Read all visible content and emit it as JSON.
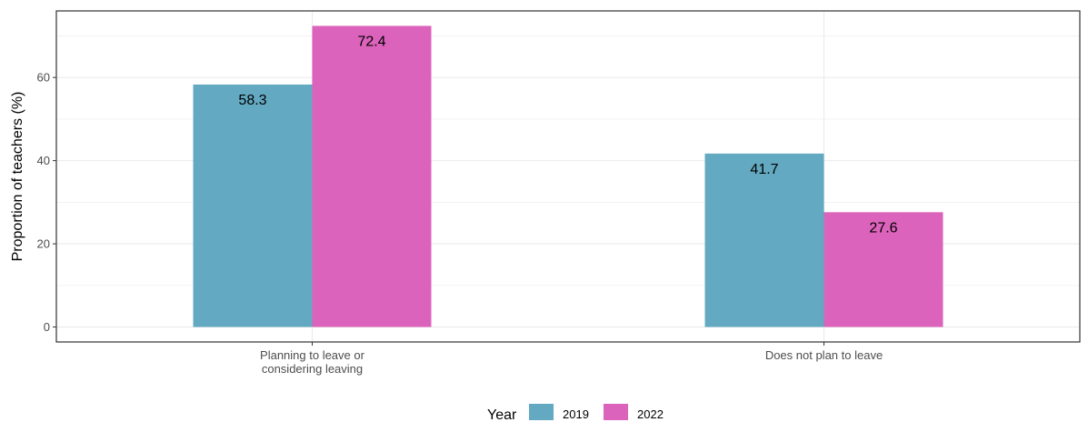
{
  "chart_data": {
    "type": "bar",
    "title": "",
    "xlabel": "",
    "ylabel": "Proportion of teachers (%)",
    "categories": [
      [
        "Planning to leave or",
        "considering leaving"
      ],
      [
        "Does not plan to leave"
      ]
    ],
    "series": [
      {
        "name": "2019",
        "color": "#63a9c1",
        "values": [
          58.3,
          41.7
        ]
      },
      {
        "name": "2022",
        "color": "#dc63bb",
        "values": [
          72.4,
          27.6
        ]
      }
    ],
    "ylim": [
      -3.6,
      76
    ],
    "yticks": [
      0,
      20,
      40,
      60
    ],
    "grid": true,
    "legend": {
      "title": "Year",
      "position": "bottom"
    }
  }
}
